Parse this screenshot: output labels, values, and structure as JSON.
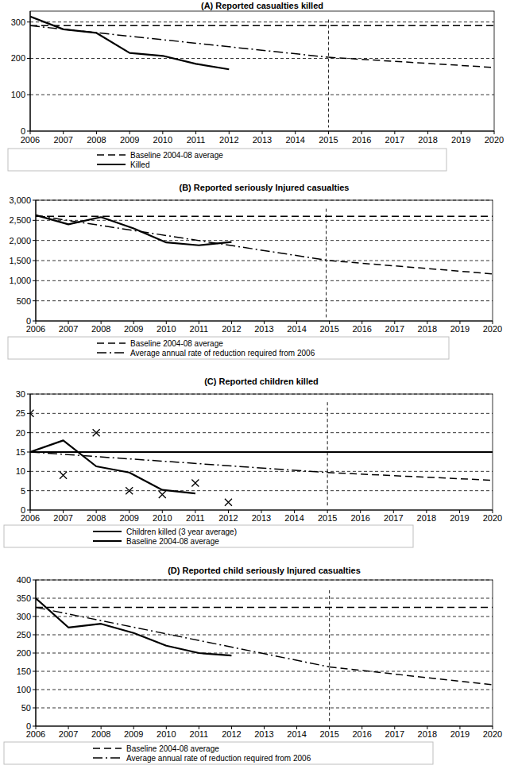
{
  "chart_data": [
    {
      "type": "line",
      "title": "(A) Reported casualties killed",
      "xlim": [
        2006,
        2020
      ],
      "xticks": [
        2006,
        2007,
        2008,
        2009,
        2010,
        2011,
        2012,
        2013,
        2014,
        2015,
        2016,
        2017,
        2018,
        2019,
        2020
      ],
      "ylim": [
        0,
        330
      ],
      "yticks": [
        0,
        100,
        200,
        300
      ],
      "grid": true,
      "legend": "bottom",
      "vline_x": 2015,
      "series": [
        {
          "name": "Baseline 2004-08 average",
          "color": "#000000",
          "line_style": "dashed",
          "x": [
            2006,
            2020
          ],
          "values": [
            290,
            290
          ]
        },
        {
          "name": "Killed",
          "color": "#000000",
          "line_style": "solid",
          "x": [
            2006,
            2007,
            2008,
            2009,
            2010,
            2011,
            2012
          ],
          "values": [
            315,
            280,
            270,
            215,
            207,
            185,
            170
          ]
        },
        {
          "color": "#000000",
          "line_style": "dashdot",
          "x": [
            2006,
            2015
          ],
          "values": [
            290,
            203
          ]
        },
        {
          "color": "#000000",
          "line_style": "dashed",
          "x": [
            2015,
            2020
          ],
          "values": [
            203,
            175
          ]
        }
      ]
    },
    {
      "type": "line",
      "title": "(B) Reported seriously Injured casualties",
      "xlim": [
        2006,
        2020
      ],
      "xticks": [
        2006,
        2007,
        2008,
        2009,
        2010,
        2011,
        2012,
        2013,
        2014,
        2015,
        2016,
        2017,
        2018,
        2019,
        2020
      ],
      "ylim": [
        0,
        3000
      ],
      "yticks": [
        0,
        500,
        {
          "value": 1000,
          "label": "1,000"
        },
        {
          "value": 1500,
          "label": "1,500"
        },
        {
          "value": 2000,
          "label": "2,000"
        },
        {
          "value": 2500,
          "label": "2,500"
        },
        {
          "value": 3000,
          "label": "3,000"
        }
      ],
      "grid": true,
      "legend": "bottom",
      "vline_x": 2014.9,
      "series": [
        {
          "name": "Baseline 2004-08 average",
          "color": "#000000",
          "line_style": "dashed",
          "x": [
            2006,
            2020
          ],
          "values": [
            2600,
            2600
          ]
        },
        {
          "name": "Average annual rate of reduction required from 2006",
          "color": "#000000",
          "line_style": "dashdot",
          "x": [
            2006,
            2015
          ],
          "values": [
            2620,
            1500
          ]
        },
        {
          "color": "#000000",
          "line_style": "solid",
          "x": [
            2006,
            2007,
            2008,
            2009,
            2010,
            2011,
            2012
          ],
          "values": [
            2630,
            2400,
            2580,
            2300,
            1950,
            1880,
            1960
          ]
        },
        {
          "color": "#000000",
          "line_style": "dashed",
          "x": [
            2015,
            2020
          ],
          "values": [
            1500,
            1170
          ]
        }
      ]
    },
    {
      "type": "line",
      "title": "(C) Reported children killed",
      "xlim": [
        2006,
        2020
      ],
      "xticks": [
        2006,
        2007,
        2008,
        2009,
        2010,
        2011,
        2012,
        2013,
        2014,
        2015,
        2016,
        2017,
        2018,
        2019,
        2020
      ],
      "ylim": [
        0,
        30
      ],
      "yticks": [
        0,
        5,
        10,
        15,
        20,
        25,
        30
      ],
      "grid": true,
      "legend": "bottom",
      "vline_x": 2015,
      "series": [
        {
          "name": "Children killed (3 year average)",
          "color": "#000000",
          "line_style": "solid",
          "x": [
            2006,
            2007,
            2008,
            2009,
            2010,
            2011
          ],
          "values": [
            15,
            18,
            11.3,
            9.7,
            5.2,
            4.3
          ]
        },
        {
          "name": "Baseline 2004-08 average",
          "color": "#000000",
          "line_style": "solid",
          "x": [
            2006,
            2020
          ],
          "values": [
            15,
            15
          ]
        },
        {
          "type": "scatter",
          "marker": "x",
          "color": "#000000",
          "x": [
            2006,
            2007,
            2008,
            2009,
            2010,
            2011,
            2012
          ],
          "values": [
            25,
            9,
            20,
            5,
            4,
            7,
            2
          ]
        },
        {
          "color": "#000000",
          "line_style": "dashdot",
          "x": [
            2006,
            2015
          ],
          "values": [
            15,
            9.7
          ]
        },
        {
          "color": "#000000",
          "line_style": "dashed",
          "x": [
            2015,
            2020
          ],
          "values": [
            9.7,
            7.7
          ]
        }
      ]
    },
    {
      "type": "line",
      "title": "(D) Reported child seriously Injured casualties",
      "xlim": [
        2006,
        2020
      ],
      "xticks": [
        2006,
        2007,
        2008,
        2009,
        2010,
        2011,
        2012,
        2013,
        2014,
        2015,
        2016,
        2017,
        2018,
        2019,
        2020
      ],
      "ylim": [
        0,
        400
      ],
      "yticks": [
        0,
        50,
        100,
        150,
        200,
        250,
        300,
        350,
        400
      ],
      "grid": true,
      "legend": "bottom",
      "vline_x": 2015,
      "series": [
        {
          "name": "Baseline 2004-08 average",
          "color": "#000000",
          "line_style": "dashed",
          "x": [
            2006,
            2020
          ],
          "values": [
            325,
            325
          ]
        },
        {
          "name": "Average annual rate of reduction required from 2006",
          "color": "#000000",
          "line_style": "dashdot",
          "x": [
            2006,
            2015
          ],
          "values": [
            325,
            162
          ]
        },
        {
          "color": "#000000",
          "line_style": "solid",
          "x": [
            2006,
            2007,
            2008,
            2009,
            2010,
            2011,
            2012
          ],
          "values": [
            350,
            270,
            280,
            255,
            220,
            200,
            193
          ]
        },
        {
          "color": "#000000",
          "line_style": "dashed",
          "x": [
            2015,
            2020
          ],
          "values": [
            162,
            113
          ]
        }
      ]
    }
  ]
}
